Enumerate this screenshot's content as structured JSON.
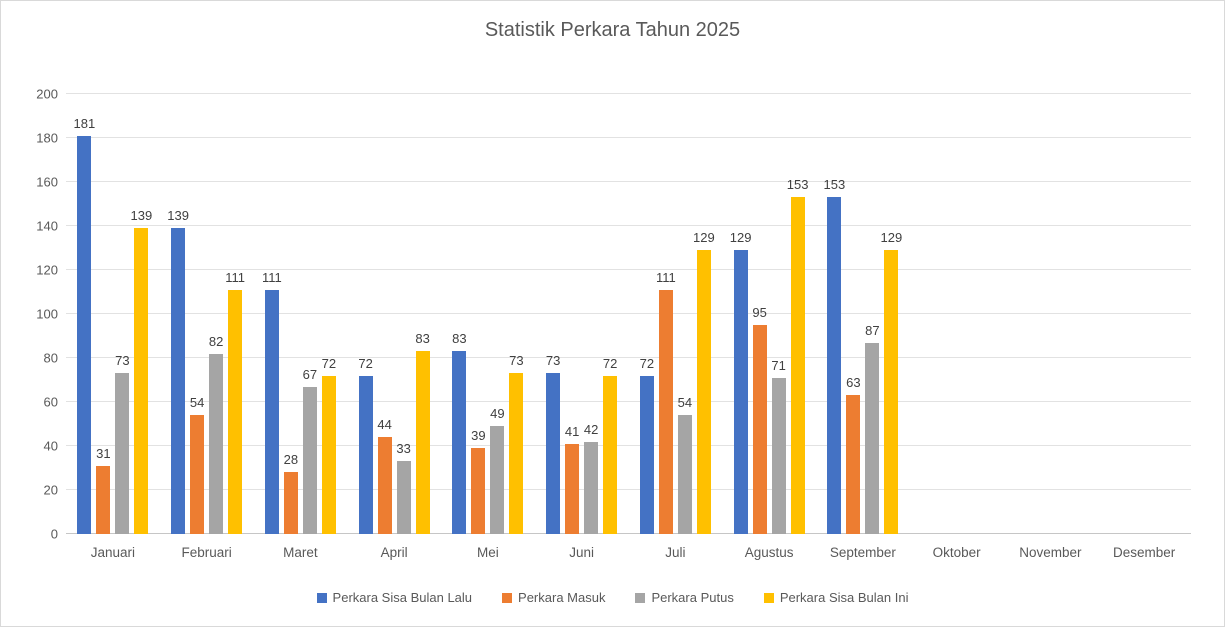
{
  "title": "Statistik Perkara Tahun 2025",
  "chart_data": {
    "type": "bar",
    "title": "Statistik Perkara Tahun 2025",
    "categories": [
      "Januari",
      "Februari",
      "Maret",
      "April",
      "Mei",
      "Juni",
      "Juli",
      "Agustus",
      "September",
      "Oktober",
      "November",
      "Desember"
    ],
    "series": [
      {
        "name": "Perkara Sisa Bulan Lalu",
        "color": "#4472C4",
        "values": [
          181,
          139,
          111,
          72,
          83,
          73,
          72,
          129,
          153,
          null,
          null,
          null
        ]
      },
      {
        "name": "Perkara Masuk",
        "color": "#ED7D31",
        "values": [
          31,
          54,
          28,
          44,
          39,
          41,
          111,
          95,
          63,
          null,
          null,
          null
        ]
      },
      {
        "name": "Perkara Putus",
        "color": "#A5A5A5",
        "values": [
          73,
          82,
          67,
          33,
          49,
          42,
          54,
          71,
          87,
          null,
          null,
          null
        ]
      },
      {
        "name": "Perkara Sisa Bulan Ini",
        "color": "#FFC000",
        "values": [
          139,
          111,
          72,
          83,
          73,
          72,
          129,
          153,
          129,
          null,
          null,
          null
        ]
      }
    ],
    "xlabel": "",
    "ylabel": "",
    "ylim": [
      0,
      200
    ],
    "ytick_step": 20,
    "grid": true,
    "data_labels": true,
    "legend_position": "bottom"
  }
}
